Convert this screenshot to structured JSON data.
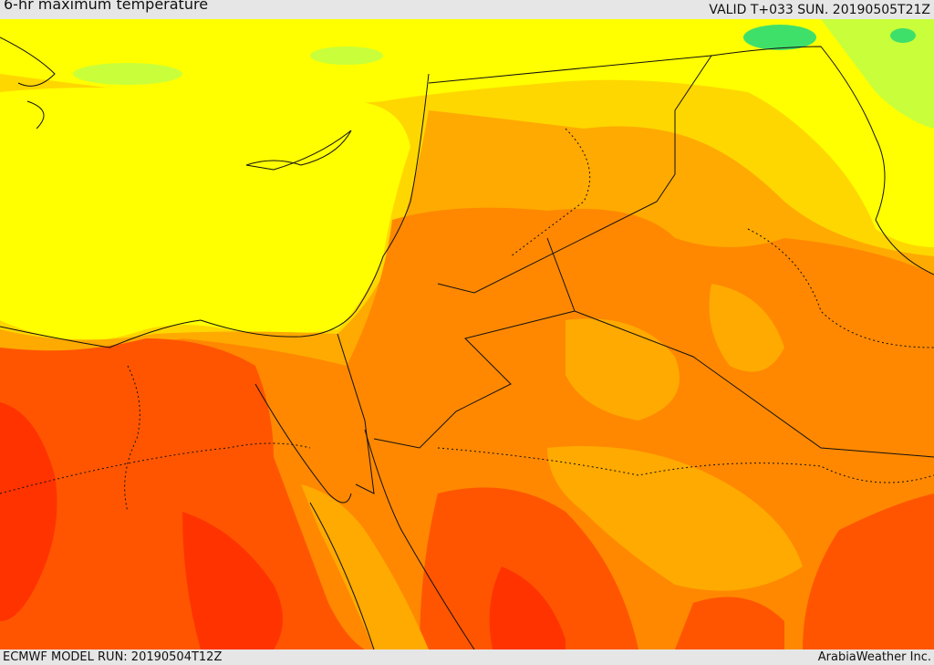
{
  "header": {
    "title": "6-hr maximum temperature",
    "valid_time": "VALID T+033 SUN. 20190505T21Z"
  },
  "footer": {
    "model_run": "ECMWF MODEL RUN: 20190504T12Z",
    "credit": "ArabiaWeather Inc."
  },
  "colors": {
    "band_green": "#3fe06a",
    "band_lightgreen": "#c8ff3a",
    "band_yellow": "#ffff00",
    "band_gold": "#ffd700",
    "band_amber": "#ffaa00",
    "band_orange": "#ff8800",
    "band_redorange": "#ff5500",
    "band_red": "#ff3300",
    "coastline": "#111111"
  }
}
